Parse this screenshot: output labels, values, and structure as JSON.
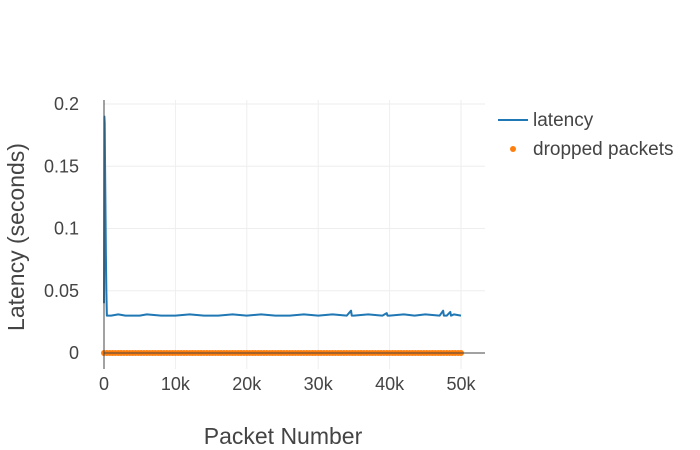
{
  "chart_data": {
    "type": "line",
    "xlabel": "Packet Number",
    "ylabel": "Latency (seconds)",
    "xlim": [
      0,
      50000
    ],
    "ylim": [
      0,
      0.2
    ],
    "x_ticks": [
      0,
      10000,
      20000,
      30000,
      40000,
      50000
    ],
    "x_tick_labels": [
      "0",
      "10k",
      "20k",
      "30k",
      "40k",
      "50k"
    ],
    "y_ticks": [
      0,
      0.05,
      0.1,
      0.15,
      0.2
    ],
    "y_tick_labels": [
      "0",
      "0.05",
      "0.1",
      "0.15",
      "0.2"
    ],
    "grid": true,
    "legend_position": "right",
    "series": [
      {
        "name": "latency",
        "mode": "line",
        "color": "#1f77b4",
        "x": [
          0,
          50,
          100,
          150,
          200,
          260,
          330,
          400,
          500,
          1000,
          2000,
          3000,
          4000,
          5000,
          6000,
          8000,
          10000,
          12000,
          14000,
          16000,
          18000,
          20000,
          22000,
          24000,
          26000,
          28000,
          30000,
          32000,
          34000,
          34600,
          34700,
          35000,
          37000,
          39000,
          39600,
          39700,
          40000,
          42000,
          43500,
          45000,
          47000,
          47500,
          47600,
          48000,
          48500,
          48600,
          49000,
          50000
        ],
        "y": [
          0.04,
          0.19,
          0.185,
          0.15,
          0.12,
          0.08,
          0.05,
          0.03,
          0.03,
          0.03,
          0.031,
          0.03,
          0.03,
          0.03,
          0.031,
          0.03,
          0.03,
          0.031,
          0.03,
          0.03,
          0.031,
          0.03,
          0.031,
          0.03,
          0.03,
          0.031,
          0.03,
          0.031,
          0.03,
          0.034,
          0.03,
          0.03,
          0.031,
          0.03,
          0.032,
          0.03,
          0.03,
          0.031,
          0.03,
          0.031,
          0.03,
          0.034,
          0.03,
          0.03,
          0.033,
          0.03,
          0.031,
          0.03
        ]
      },
      {
        "name": "dropped packets",
        "mode": "markers",
        "color": "#ff7f0e",
        "x_range": [
          0,
          50000
        ],
        "y": 0
      }
    ]
  }
}
